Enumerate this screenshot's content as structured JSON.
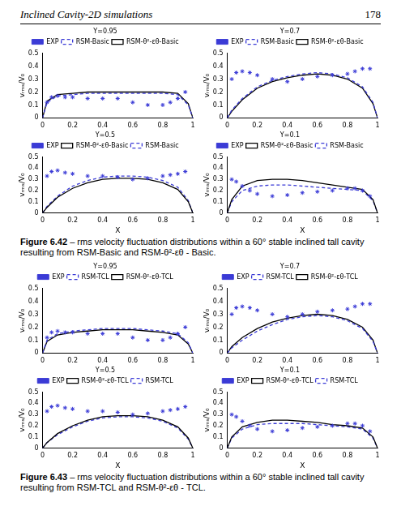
{
  "header": {
    "title": "Inclined Cavity-2D simulations",
    "page": "178"
  },
  "captions": [
    {
      "label": "Figure 6.42",
      "text": "– rms velocity fluctuation distributions within a 60° stable inclined tall cavity resulting from RSM-Basic and RSM-θ²-εθ - Basic."
    },
    {
      "label": "Figure 6.43",
      "text": "– rms velocity fluctuation distributions within a 60° stable inclined tall cavity resulting from RSM-TCL and RSM-θ²-εθ - TCL."
    }
  ],
  "chart_data": [
    {
      "type": "line",
      "title": "Y=0.95",
      "ylabel": "vᵣₘₛ/V₀",
      "legend": "top",
      "xlim": [
        0,
        1
      ],
      "xticks": [
        0,
        0.2,
        0.4,
        0.6,
        0.8,
        1
      ],
      "ylim": [
        0,
        0.5
      ],
      "yticks": [
        0,
        0.1,
        0.2,
        0.3,
        0.4,
        0.5
      ],
      "series": [
        {
          "name": "EXP",
          "type": "scatter",
          "marker": "star",
          "color": "#3b3bd6",
          "x": [
            0.03,
            0.06,
            0.1,
            0.15,
            0.2,
            0.3,
            0.4,
            0.5,
            0.6,
            0.7,
            0.8,
            0.85,
            0.9,
            0.95
          ],
          "values": [
            0.12,
            0.16,
            0.17,
            0.16,
            0.16,
            0.15,
            0.15,
            0.15,
            0.12,
            0.1,
            0.1,
            0.12,
            0.15,
            0.2
          ]
        },
        {
          "name": "RSM-Basic",
          "type": "line",
          "line_style": "dashed",
          "color": "#3b3bd6",
          "x": [
            0,
            0.03,
            0.1,
            0.2,
            0.3,
            0.4,
            0.5,
            0.6,
            0.7,
            0.8,
            0.9,
            0.97,
            1
          ],
          "values": [
            0,
            0.12,
            0.17,
            0.18,
            0.19,
            0.19,
            0.19,
            0.19,
            0.19,
            0.19,
            0.18,
            0.1,
            0
          ]
        },
        {
          "name": "RSM-θ²-εθ-Basic",
          "type": "line",
          "line_style": "solid",
          "color": "#000000",
          "x": [
            0,
            0.03,
            0.1,
            0.2,
            0.3,
            0.4,
            0.5,
            0.6,
            0.7,
            0.8,
            0.9,
            0.97,
            1
          ],
          "values": [
            0,
            0.13,
            0.18,
            0.19,
            0.2,
            0.2,
            0.2,
            0.2,
            0.2,
            0.2,
            0.19,
            0.11,
            0
          ]
        }
      ]
    },
    {
      "type": "line",
      "title": "Y=0.7",
      "ylabel": "vᵣₘₛ/V₀",
      "legend": "top",
      "xlim": [
        0,
        1
      ],
      "xticks": [
        0,
        0.2,
        0.4,
        0.6,
        0.8,
        1
      ],
      "ylim": [
        0,
        0.5
      ],
      "yticks": [
        0,
        0.1,
        0.2,
        0.3,
        0.4,
        0.5
      ],
      "series": [
        {
          "name": "EXP",
          "type": "scatter",
          "marker": "star",
          "color": "#3b3bd6",
          "x": [
            0.03,
            0.06,
            0.1,
            0.15,
            0.2,
            0.3,
            0.4,
            0.5,
            0.6,
            0.7,
            0.8,
            0.85,
            0.9,
            0.95
          ],
          "values": [
            0.3,
            0.35,
            0.36,
            0.35,
            0.33,
            0.3,
            0.28,
            0.3,
            0.32,
            0.33,
            0.34,
            0.36,
            0.38,
            0.38
          ]
        },
        {
          "name": "RSM-Basic",
          "type": "line",
          "line_style": "dashed",
          "color": "#3b3bd6",
          "x": [
            0,
            0.03,
            0.1,
            0.2,
            0.3,
            0.4,
            0.5,
            0.6,
            0.7,
            0.8,
            0.9,
            0.97,
            1
          ],
          "values": [
            0,
            0.06,
            0.15,
            0.24,
            0.29,
            0.32,
            0.34,
            0.35,
            0.34,
            0.31,
            0.24,
            0.12,
            0
          ]
        },
        {
          "name": "RSM-θ²-εθ-Basic",
          "type": "line",
          "line_style": "solid",
          "color": "#000000",
          "x": [
            0,
            0.03,
            0.1,
            0.2,
            0.3,
            0.4,
            0.5,
            0.6,
            0.7,
            0.8,
            0.9,
            0.97,
            1
          ],
          "values": [
            0,
            0.05,
            0.14,
            0.23,
            0.28,
            0.31,
            0.33,
            0.34,
            0.33,
            0.3,
            0.23,
            0.11,
            0
          ]
        }
      ]
    },
    {
      "type": "line",
      "title": "Y=0.5",
      "xlabel": "X",
      "ylabel": "vᵣₘₛ/V₀",
      "legend": "top",
      "xlim": [
        0,
        1
      ],
      "xticks": [
        0,
        0.2,
        0.4,
        0.6,
        0.8,
        1
      ],
      "ylim": [
        0,
        0.5
      ],
      "yticks": [
        0,
        0.1,
        0.2,
        0.3,
        0.4,
        0.5
      ],
      "series": [
        {
          "name": "EXP",
          "type": "scatter",
          "marker": "star",
          "color": "#3b3bd6",
          "x": [
            0.03,
            0.06,
            0.1,
            0.15,
            0.2,
            0.3,
            0.4,
            0.5,
            0.6,
            0.7,
            0.8,
            0.85,
            0.9,
            0.95
          ],
          "values": [
            0.33,
            0.37,
            0.38,
            0.36,
            0.35,
            0.33,
            0.33,
            0.32,
            0.3,
            0.31,
            0.33,
            0.34,
            0.35,
            0.37
          ]
        },
        {
          "name": "RSM-θ²-εθ-Basic",
          "type": "line",
          "line_style": "solid",
          "color": "#000000",
          "x": [
            0,
            0.03,
            0.1,
            0.2,
            0.3,
            0.4,
            0.5,
            0.6,
            0.7,
            0.8,
            0.9,
            0.97,
            1
          ],
          "values": [
            0,
            0.05,
            0.14,
            0.22,
            0.27,
            0.3,
            0.31,
            0.31,
            0.3,
            0.27,
            0.21,
            0.1,
            0
          ]
        },
        {
          "name": "RSM-Basic",
          "type": "line",
          "line_style": "dashed",
          "color": "#3b3bd6",
          "x": [
            0,
            0.03,
            0.1,
            0.2,
            0.3,
            0.4,
            0.5,
            0.6,
            0.7,
            0.8,
            0.9,
            0.97,
            1
          ],
          "values": [
            0,
            0.06,
            0.15,
            0.24,
            0.29,
            0.32,
            0.33,
            0.33,
            0.32,
            0.29,
            0.23,
            0.11,
            0
          ]
        }
      ]
    },
    {
      "type": "line",
      "title": "Y=0.1",
      "xlabel": "X",
      "ylabel": "vᵣₘₛ/V₀",
      "legend": "top",
      "xlim": [
        0,
        1
      ],
      "xticks": [
        0,
        0.2,
        0.4,
        0.6,
        0.8,
        1
      ],
      "ylim": [
        0,
        0.5
      ],
      "yticks": [
        0,
        0.1,
        0.2,
        0.3,
        0.4,
        0.5
      ],
      "series": [
        {
          "name": "EXP",
          "type": "scatter",
          "marker": "star",
          "color": "#3b3bd6",
          "x": [
            0.03,
            0.06,
            0.1,
            0.15,
            0.2,
            0.3,
            0.4,
            0.5,
            0.6,
            0.7,
            0.8,
            0.85,
            0.9,
            0.95
          ],
          "values": [
            0.3,
            0.28,
            0.24,
            0.2,
            0.17,
            0.15,
            0.16,
            0.18,
            0.19,
            0.2,
            0.22,
            0.22,
            0.2,
            0.15
          ]
        },
        {
          "name": "RSM-θ²-εθ-Basic",
          "type": "line",
          "line_style": "solid",
          "color": "#000000",
          "x": [
            0,
            0.03,
            0.1,
            0.2,
            0.3,
            0.4,
            0.5,
            0.6,
            0.7,
            0.8,
            0.9,
            0.97,
            1
          ],
          "values": [
            0,
            0.12,
            0.24,
            0.29,
            0.3,
            0.3,
            0.29,
            0.27,
            0.25,
            0.23,
            0.21,
            0.12,
            0
          ]
        },
        {
          "name": "RSM-Basic",
          "type": "line",
          "line_style": "dashed",
          "color": "#3b3bd6",
          "x": [
            0,
            0.03,
            0.1,
            0.2,
            0.3,
            0.4,
            0.5,
            0.6,
            0.7,
            0.8,
            0.9,
            0.97,
            1
          ],
          "values": [
            0,
            0.1,
            0.2,
            0.24,
            0.25,
            0.25,
            0.24,
            0.23,
            0.22,
            0.21,
            0.2,
            0.11,
            0
          ]
        }
      ]
    },
    {
      "type": "line",
      "title": "Y=0.95",
      "ylabel": "vᵣₘₛ/V₀",
      "legend": "top",
      "xlim": [
        0,
        1
      ],
      "xticks": [
        0,
        0.2,
        0.4,
        0.6,
        0.8,
        1
      ],
      "ylim": [
        0,
        0.5
      ],
      "yticks": [
        0,
        0.1,
        0.2,
        0.3,
        0.4,
        0.5
      ],
      "series": [
        {
          "name": "EXP",
          "type": "scatter",
          "marker": "star",
          "color": "#3b3bd6",
          "x": [
            0.03,
            0.06,
            0.1,
            0.15,
            0.2,
            0.3,
            0.4,
            0.5,
            0.6,
            0.7,
            0.8,
            0.85,
            0.9,
            0.95
          ],
          "values": [
            0.12,
            0.16,
            0.17,
            0.16,
            0.16,
            0.15,
            0.15,
            0.15,
            0.12,
            0.1,
            0.1,
            0.12,
            0.15,
            0.2
          ]
        },
        {
          "name": "RSM-TCL",
          "type": "line",
          "line_style": "dashed",
          "color": "#3b3bd6",
          "x": [
            0,
            0.03,
            0.1,
            0.2,
            0.3,
            0.4,
            0.5,
            0.6,
            0.7,
            0.8,
            0.9,
            0.97,
            1
          ],
          "values": [
            0,
            0.1,
            0.15,
            0.17,
            0.18,
            0.19,
            0.19,
            0.19,
            0.18,
            0.17,
            0.15,
            0.08,
            0
          ]
        },
        {
          "name": "RSM-θ²-εθ-TCL",
          "type": "line",
          "line_style": "solid",
          "color": "#000000",
          "x": [
            0,
            0.03,
            0.1,
            0.2,
            0.3,
            0.4,
            0.5,
            0.6,
            0.7,
            0.8,
            0.9,
            0.97,
            1
          ],
          "values": [
            0,
            0.09,
            0.14,
            0.16,
            0.17,
            0.18,
            0.18,
            0.18,
            0.17,
            0.16,
            0.14,
            0.07,
            0
          ]
        }
      ]
    },
    {
      "type": "line",
      "title": "Y=0.7",
      "ylabel": "vᵣₘₛ/V₀",
      "legend": "top",
      "xlim": [
        0,
        1
      ],
      "xticks": [
        0,
        0.2,
        0.4,
        0.6,
        0.8,
        1
      ],
      "ylim": [
        0,
        0.5
      ],
      "yticks": [
        0,
        0.1,
        0.2,
        0.3,
        0.4,
        0.5
      ],
      "series": [
        {
          "name": "EXP",
          "type": "scatter",
          "marker": "star",
          "color": "#3b3bd6",
          "x": [
            0.03,
            0.06,
            0.1,
            0.15,
            0.2,
            0.3,
            0.4,
            0.5,
            0.6,
            0.7,
            0.8,
            0.85,
            0.9,
            0.95
          ],
          "values": [
            0.3,
            0.35,
            0.36,
            0.35,
            0.33,
            0.3,
            0.28,
            0.3,
            0.32,
            0.33,
            0.34,
            0.36,
            0.38,
            0.38
          ]
        },
        {
          "name": "RSM-TCL",
          "type": "line",
          "line_style": "dashed",
          "color": "#3b3bd6",
          "x": [
            0,
            0.03,
            0.1,
            0.2,
            0.3,
            0.4,
            0.5,
            0.6,
            0.7,
            0.8,
            0.9,
            0.97,
            1
          ],
          "values": [
            0,
            0.04,
            0.1,
            0.17,
            0.22,
            0.26,
            0.28,
            0.29,
            0.28,
            0.25,
            0.19,
            0.09,
            0
          ]
        },
        {
          "name": "RSM-θ²-εθ-TCL",
          "type": "line",
          "line_style": "solid",
          "color": "#000000",
          "x": [
            0,
            0.03,
            0.1,
            0.2,
            0.3,
            0.4,
            0.5,
            0.6,
            0.7,
            0.8,
            0.9,
            0.97,
            1
          ],
          "values": [
            0,
            0.05,
            0.12,
            0.19,
            0.24,
            0.27,
            0.29,
            0.3,
            0.29,
            0.26,
            0.2,
            0.1,
            0
          ]
        }
      ]
    },
    {
      "type": "line",
      "title": "Y=0.5",
      "xlabel": "X",
      "ylabel": "vᵣₘₛ/V₀",
      "legend": "top",
      "xlim": [
        0,
        1
      ],
      "xticks": [
        0,
        0.2,
        0.4,
        0.6,
        0.8,
        1
      ],
      "ylim": [
        0,
        0.5
      ],
      "yticks": [
        0,
        0.1,
        0.2,
        0.3,
        0.4,
        0.5
      ],
      "series": [
        {
          "name": "EXP",
          "type": "scatter",
          "marker": "star",
          "color": "#3b3bd6",
          "x": [
            0.03,
            0.06,
            0.1,
            0.15,
            0.2,
            0.3,
            0.4,
            0.5,
            0.6,
            0.7,
            0.8,
            0.85,
            0.9,
            0.95
          ],
          "values": [
            0.33,
            0.37,
            0.38,
            0.36,
            0.35,
            0.33,
            0.33,
            0.32,
            0.3,
            0.31,
            0.33,
            0.34,
            0.35,
            0.37
          ]
        },
        {
          "name": "RSM-θ²-εθ-TCL",
          "type": "line",
          "line_style": "solid",
          "color": "#000000",
          "x": [
            0,
            0.03,
            0.1,
            0.2,
            0.3,
            0.4,
            0.5,
            0.6,
            0.7,
            0.8,
            0.9,
            0.97,
            1
          ],
          "values": [
            0,
            0.05,
            0.13,
            0.2,
            0.25,
            0.28,
            0.29,
            0.29,
            0.28,
            0.25,
            0.19,
            0.09,
            0
          ]
        },
        {
          "name": "RSM-TCL",
          "type": "line",
          "line_style": "dashed",
          "color": "#3b3bd6",
          "x": [
            0,
            0.03,
            0.1,
            0.2,
            0.3,
            0.4,
            0.5,
            0.6,
            0.7,
            0.8,
            0.9,
            0.97,
            1
          ],
          "values": [
            0,
            0.05,
            0.12,
            0.19,
            0.24,
            0.27,
            0.28,
            0.28,
            0.27,
            0.24,
            0.18,
            0.08,
            0
          ]
        }
      ]
    },
    {
      "type": "line",
      "title": "Y=0.1",
      "xlabel": "X",
      "ylabel": "vᵣₘₛ/V₀",
      "legend": "top",
      "xlim": [
        0,
        1
      ],
      "xticks": [
        0,
        0.2,
        0.4,
        0.6,
        0.8,
        1
      ],
      "ylim": [
        0,
        0.5
      ],
      "yticks": [
        0,
        0.1,
        0.2,
        0.3,
        0.4,
        0.5
      ],
      "series": [
        {
          "name": "EXP",
          "type": "scatter",
          "marker": "star",
          "color": "#3b3bd6",
          "x": [
            0.03,
            0.06,
            0.1,
            0.15,
            0.2,
            0.3,
            0.4,
            0.5,
            0.6,
            0.7,
            0.8,
            0.85,
            0.9,
            0.95
          ],
          "values": [
            0.3,
            0.28,
            0.24,
            0.2,
            0.17,
            0.15,
            0.16,
            0.18,
            0.19,
            0.2,
            0.22,
            0.22,
            0.2,
            0.15
          ]
        },
        {
          "name": "RSM-θ²-εθ-TCL",
          "type": "line",
          "line_style": "solid",
          "color": "#000000",
          "x": [
            0,
            0.03,
            0.1,
            0.2,
            0.3,
            0.4,
            0.5,
            0.6,
            0.7,
            0.8,
            0.9,
            0.97,
            1
          ],
          "values": [
            0,
            0.1,
            0.19,
            0.23,
            0.25,
            0.25,
            0.24,
            0.23,
            0.21,
            0.2,
            0.18,
            0.1,
            0
          ]
        },
        {
          "name": "RSM-TCL",
          "type": "line",
          "line_style": "dashed",
          "color": "#3b3bd6",
          "x": [
            0,
            0.03,
            0.1,
            0.2,
            0.3,
            0.4,
            0.5,
            0.6,
            0.7,
            0.8,
            0.9,
            0.97,
            1
          ],
          "values": [
            0,
            0.09,
            0.17,
            0.21,
            0.22,
            0.22,
            0.22,
            0.21,
            0.2,
            0.19,
            0.17,
            0.09,
            0
          ]
        }
      ]
    }
  ]
}
